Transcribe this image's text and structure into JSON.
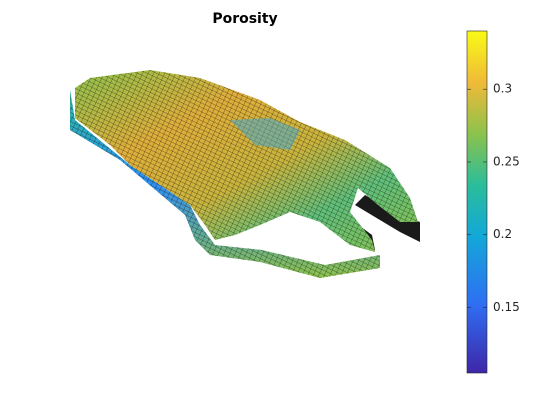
{
  "chart_data": {
    "type": "surface3d",
    "title": "Porosity",
    "colorbar": {
      "clim": [
        0.105,
        0.34
      ],
      "ticks": [
        0.15,
        0.2,
        0.25,
        0.3
      ]
    }
  }
}
